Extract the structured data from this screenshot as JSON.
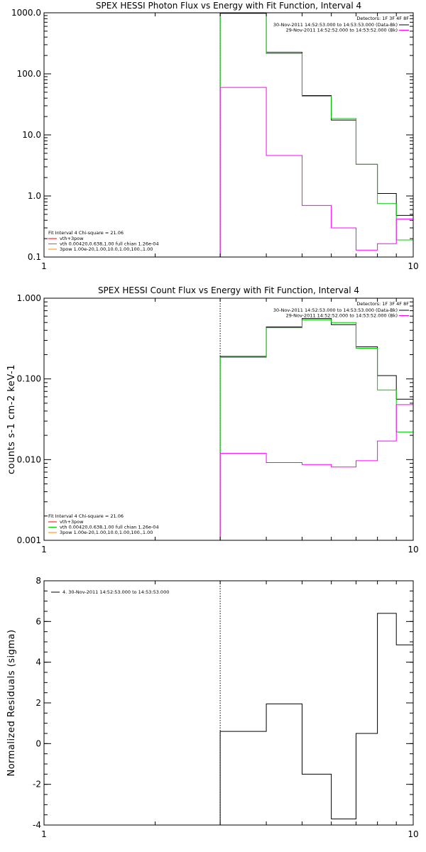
{
  "chart_data": [
    {
      "type": "line",
      "title": "SPEX HESSI Photon Flux vs Energy with Fit Function, Interval 4",
      "xscale": "log",
      "yscale": "log",
      "xlim": [
        1,
        10
      ],
      "ylim": [
        0.1,
        1000
      ],
      "x_tick_labels": [
        "1",
        "10"
      ],
      "y_ticks": [
        0.1,
        1,
        10,
        100,
        1000
      ],
      "y_tick_labels": [
        "0.1",
        "1.0",
        "10.0",
        "100.0",
        "1000.0"
      ],
      "fit_start_energy": 3,
      "bin_edges": [
        3,
        4,
        5,
        6,
        7,
        8,
        9,
        10
      ],
      "legend_right": {
        "header": "Detectors: 1F 3F 4F 8F",
        "entries": [
          {
            "text": "30-Nov-2011 14:52:53.000 to 14:53:53.000 (Data-Bk)",
            "color": "#000000"
          },
          {
            "text": "29-Nov-2011 14:52:52.000 to 14:53:52.000 (Bk)",
            "color": "#ff00ff"
          }
        ]
      },
      "legend_left": {
        "header": "Fit Interval  4   Chi-square = 21.06",
        "entries": [
          {
            "text": "vth+3pow",
            "color": "#ff0000"
          },
          {
            "text": "vth 0.00420,0.638,1.00  full chian 1.26e-04",
            "color": "#00cc00"
          },
          {
            "text": "3pow 1.00e-20,1.00,10.0,1.00,100.,1.00",
            "color": "#ff8800"
          }
        ]
      },
      "series": [
        {
          "color": "#000000",
          "values": [
            980,
            225,
            44,
            17.5,
            3.3,
            1.1,
            0.48
          ]
        },
        {
          "color": "#00cc00",
          "values": [
            1000,
            215,
            43,
            18.5,
            3.3,
            0.75,
            0.19
          ]
        },
        {
          "color": "#ff00ff",
          "values": [
            60,
            4.6,
            0.7,
            0.3,
            0.13,
            0.165,
            0.42
          ]
        }
      ]
    },
    {
      "type": "line",
      "title": "SPEX HESSI Count Flux vs Energy with Fit Function, Interval 4",
      "ylabel": "counts s-1 cm-2 keV-1",
      "xscale": "log",
      "yscale": "log",
      "xlim": [
        1,
        10
      ],
      "ylim": [
        0.001,
        1
      ],
      "x_tick_labels": [
        "1",
        "10"
      ],
      "y_ticks": [
        0.001,
        0.01,
        0.1,
        1
      ],
      "y_tick_labels": [
        "0.001",
        "0.010",
        "0.100",
        "1.000"
      ],
      "fit_start_energy": 3,
      "bin_edges": [
        3,
        4,
        5,
        6,
        7,
        8,
        9,
        10
      ],
      "legend_right": {
        "header": "Detectors: 1F 3F 4F 8F",
        "entries": [
          {
            "text": "30-Nov-2011 14:52:53.000 to 14:53:53.000 (Data-Bk)",
            "color": "#000000"
          },
          {
            "text": "29-Nov-2011 14:52:52.000 to 14:53:52.000 (Bk)",
            "color": "#ff00ff"
          }
        ]
      },
      "legend_left": {
        "header": "Fit Interval  4   Chi-square = 21.06",
        "entries": [
          {
            "text": "vth+3pow",
            "color": "#ff0000"
          },
          {
            "text": "vth 0.00420,0.638,1.00  full chian 1.26e-04",
            "color": "#00cc00"
          },
          {
            "text": "3pow 1.00e-20,1.00,10.0,1.00,100.,1.00",
            "color": "#ff8800"
          }
        ]
      },
      "series": [
        {
          "color": "#000000",
          "values": [
            0.19,
            0.44,
            0.56,
            0.47,
            0.25,
            0.11,
            0.056
          ]
        },
        {
          "color": "#00cc00",
          "values": [
            0.185,
            0.43,
            0.54,
            0.5,
            0.24,
            0.073,
            0.022
          ]
        },
        {
          "color": "#ff00ff",
          "values": [
            0.012,
            0.0092,
            0.0087,
            0.0081,
            0.0097,
            0.017,
            0.048
          ]
        }
      ]
    },
    {
      "type": "line",
      "title": "",
      "ylabel": "Normalized Residuals (sigma)",
      "xscale": "log",
      "yscale": "linear",
      "xlim": [
        1,
        10
      ],
      "ylim": [
        -4,
        8
      ],
      "x_tick_labels": [
        "1",
        "10"
      ],
      "y_ticks": [
        -4,
        -2,
        0,
        2,
        4,
        6,
        8
      ],
      "y_tick_labels": [
        "-4",
        "-2",
        "0",
        "2",
        "4",
        "6",
        "8"
      ],
      "fit_start_energy": 3,
      "bin_edges": [
        3,
        4,
        5,
        6,
        7,
        8,
        9,
        10
      ],
      "legend_left": {
        "entries": [
          {
            "text": "4. 30-Nov-2011 14:52:53.000 to 14:53:53.000",
            "color": "#000000"
          }
        ]
      },
      "series": [
        {
          "color": "#000000",
          "values": [
            0.6,
            1.95,
            -1.5,
            -3.7,
            0.5,
            6.4,
            4.85
          ]
        }
      ]
    }
  ]
}
